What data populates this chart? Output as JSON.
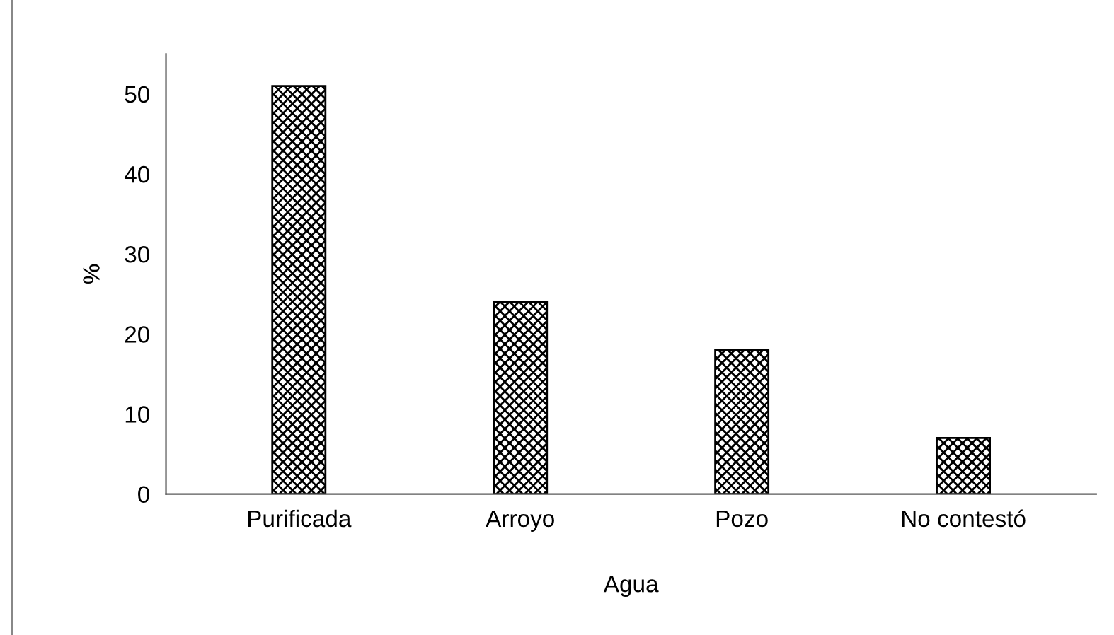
{
  "chart_data": {
    "type": "bar",
    "xlabel": "Agua",
    "ylabel": "%",
    "categories": [
      "Purificada",
      "Arroyo",
      "Pozo",
      "No contestó"
    ],
    "values": [
      51,
      24,
      18,
      7
    ],
    "color": "#000000",
    "ylim": [
      0,
      55
    ],
    "yticks": [
      0,
      10,
      20,
      30,
      40,
      50
    ],
    "grid": false
  }
}
